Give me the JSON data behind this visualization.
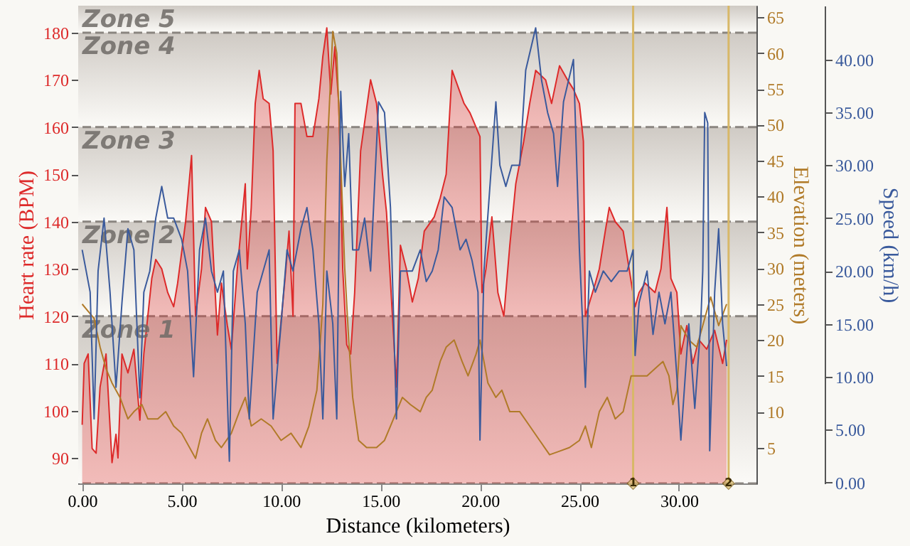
{
  "chart_data": {
    "type": "line",
    "xlabel": "Distance (kilometers)",
    "ylabel": "Heart rate (BPM)",
    "y2label": "Elevation (meters)",
    "y3label": "Speed (km/h)",
    "xlim": [
      -0.2,
      33.9
    ],
    "ylim": [
      84.6,
      185.7
    ],
    "y2lim": [
      0,
      66.6
    ],
    "y3lim": [
      -0.1,
      45.1
    ],
    "xticks": [
      {
        "value": 0,
        "label": "0.00"
      },
      {
        "value": 5,
        "label": "5.00"
      },
      {
        "value": 10,
        "label": "10.00"
      },
      {
        "value": 15,
        "label": "15.00"
      },
      {
        "value": 20,
        "label": "20.00"
      },
      {
        "value": 25,
        "label": "25.00"
      },
      {
        "value": 30,
        "label": "30.00"
      }
    ],
    "yticks": [
      90,
      100,
      110,
      120,
      130,
      140,
      150,
      160,
      170,
      180
    ],
    "y2ticks": [
      5,
      10,
      15,
      20,
      25,
      30,
      35,
      40,
      45,
      50,
      55,
      60,
      65
    ],
    "y3ticks": [
      {
        "value": 0,
        "label": "0.00"
      },
      {
        "value": 5,
        "label": "5.00"
      },
      {
        "value": 10,
        "label": "10.00"
      },
      {
        "value": 15,
        "label": "15.00"
      },
      {
        "value": 20,
        "label": "20.00"
      },
      {
        "value": 25,
        "label": "25.00"
      },
      {
        "value": 30,
        "label": "30.00"
      },
      {
        "value": 35,
        "label": "35.00"
      },
      {
        "value": 40,
        "label": "40.00"
      }
    ],
    "grid": true,
    "bands": [
      {
        "axis": "y",
        "from": 84.6,
        "to": 120,
        "label": "Zone 1",
        "color": "#cfcac4"
      },
      {
        "axis": "y",
        "from": 120,
        "to": 140,
        "label": "Zone 2",
        "color": "#cfcac4"
      },
      {
        "axis": "y",
        "from": 140,
        "to": 160,
        "label": "Zone 3",
        "color": "#cfcac4"
      },
      {
        "axis": "y",
        "from": 160,
        "to": 180,
        "label": "Zone 4",
        "color": "#cfcac4"
      },
      {
        "axis": "y",
        "from": 180,
        "to": 185.7,
        "label": "Zone 5",
        "color": "#cfcac4"
      }
    ],
    "ref_lines": [
      {
        "axis": "x",
        "value": 27.7,
        "color": "#d8b868"
      },
      {
        "axis": "x",
        "value": 32.5,
        "color": "#d8b868"
      }
    ],
    "annotations": [
      {
        "text": "1",
        "x": 27.7,
        "y": 84.6
      },
      {
        "text": "2",
        "x": 32.5,
        "y": 84.6
      }
    ],
    "series": [
      {
        "type": "area",
        "axis": "y",
        "color": "#dd2a2a",
        "x": [
          0,
          0.1,
          0.3,
          0.5,
          0.7,
          0.9,
          1.2,
          1.5,
          1.7,
          1.8,
          2.0,
          2.3,
          2.6,
          2.9,
          3.1,
          3.5,
          3.7,
          4.0,
          4.3,
          4.6,
          4.8,
          5.2,
          5.5,
          5.7,
          6.0,
          6.2,
          6.5,
          6.8,
          7.0,
          7.3,
          7.5,
          7.8,
          8.2,
          8.3,
          8.5,
          8.7,
          8.9,
          9.1,
          9.4,
          9.6,
          9.8,
          10.2,
          10.4,
          10.6,
          10.7,
          11.0,
          11.3,
          11.6,
          11.9,
          12.1,
          12.3,
          12.5,
          12.7,
          12.9,
          13.1,
          13.3,
          13.5,
          13.7,
          14.0,
          14.5,
          14.8,
          15.1,
          15.3,
          15.6,
          15.8,
          16.0,
          16.3,
          16.6,
          16.9,
          17.2,
          17.7,
          18.0,
          18.3,
          18.6,
          19.2,
          19.5,
          20.0,
          20.1,
          20.3,
          20.6,
          20.9,
          21.2,
          21.5,
          21.8,
          22.2,
          22.5,
          22.8,
          23.3,
          23.6,
          24.0,
          24.4,
          24.7,
          25.0,
          25.2,
          25.3,
          25.8,
          26.0,
          26.3,
          26.5,
          26.8,
          27.2,
          27.5,
          27.8,
          28.0,
          28.3,
          28.8,
          29.1,
          29.4,
          29.6,
          29.9,
          30.1,
          30.4,
          30.7,
          31.0,
          31.4,
          31.8,
          32.2,
          32.4
        ],
        "values": [
          97,
          110,
          112,
          92,
          91,
          105,
          112,
          89,
          95,
          90,
          112,
          108,
          113,
          98,
          112,
          128,
          132,
          130,
          125,
          122,
          127,
          140,
          154,
          120,
          130,
          143,
          140,
          116,
          127,
          118,
          113,
          130,
          148,
          130,
          143,
          165,
          172,
          166,
          165,
          155,
          110,
          128,
          138,
          120,
          165,
          165,
          158,
          158,
          166,
          175,
          181,
          167,
          177,
          165,
          130,
          114,
          112,
          125,
          155,
          170,
          165,
          150,
          142,
          120,
          105,
          135,
          130,
          123,
          128,
          138,
          141,
          145,
          150,
          172,
          165,
          163,
          158,
          125,
          130,
          141,
          125,
          120,
          135,
          148,
          157,
          165,
          172,
          170,
          165,
          173,
          170,
          168,
          165,
          157,
          120,
          127,
          130,
          138,
          143,
          140,
          138,
          130,
          122,
          125,
          127,
          125,
          130,
          143,
          128,
          125,
          112,
          118,
          110,
          115,
          113,
          117,
          110,
          115
        ]
      },
      {
        "axis": "y2",
        "color": "#b07a28",
        "x": [
          0,
          0.3,
          0.6,
          0.9,
          1.2,
          1.5,
          1.9,
          2.3,
          2.6,
          3.0,
          3.3,
          3.8,
          4.2,
          4.6,
          5.0,
          5.7,
          6.0,
          6.3,
          6.7,
          7.0,
          7.5,
          7.9,
          8.2,
          8.5,
          9.0,
          9.5,
          10.0,
          10.5,
          11.0,
          11.4,
          11.8,
          12.1,
          12.3,
          12.6,
          12.8,
          13.0,
          13.2,
          13.4,
          13.6,
          13.9,
          14.3,
          14.8,
          15.2,
          15.5,
          15.8,
          16.1,
          16.5,
          17.0,
          17.3,
          17.6,
          18.0,
          18.3,
          18.7,
          19.1,
          19.4,
          19.8,
          20.0,
          20.4,
          20.8,
          21.1,
          21.5,
          22.0,
          22.5,
          23.0,
          23.5,
          24.0,
          24.5,
          25.0,
          25.3,
          25.6,
          26.0,
          26.4,
          26.8,
          27.2,
          27.6,
          28.0,
          28.4,
          28.8,
          29.2,
          29.5,
          29.7,
          29.9,
          30.1,
          30.5,
          30.9,
          31.2,
          31.6,
          32.0,
          32.4
        ],
        "values": [
          25,
          24,
          23,
          19,
          16,
          14,
          12,
          9,
          10,
          11,
          9,
          9,
          10,
          8,
          7,
          3.5,
          7,
          9,
          6,
          5,
          7,
          10,
          12,
          8,
          9,
          8,
          6,
          7,
          5,
          8,
          13,
          25,
          45,
          63,
          60,
          45,
          30,
          20,
          12,
          6,
          5,
          5,
          6,
          8,
          10,
          12,
          11,
          10,
          12,
          13,
          17,
          19,
          20,
          17,
          15,
          18,
          20,
          14,
          12,
          13,
          10,
          10,
          8,
          6,
          4,
          4.5,
          5,
          6,
          8,
          5,
          10,
          12,
          9,
          10,
          15,
          15,
          15,
          16,
          17,
          15,
          11,
          13,
          22,
          20,
          19,
          22,
          26,
          22,
          25
        ]
      },
      {
        "axis": "y3",
        "color": "#3a5a9c",
        "x": [
          0,
          0.2,
          0.4,
          0.6,
          0.8,
          1.1,
          1.4,
          1.7,
          2.0,
          2.3,
          2.6,
          2.9,
          3.1,
          3.4,
          3.7,
          4.0,
          4.3,
          4.6,
          5.0,
          5.3,
          5.6,
          5.9,
          6.2,
          6.5,
          6.8,
          7.1,
          7.4,
          7.6,
          7.9,
          8.2,
          8.4,
          8.8,
          9.1,
          9.4,
          9.6,
          10.0,
          10.3,
          10.6,
          11.0,
          11.3,
          11.6,
          11.9,
          12.1,
          12.3,
          12.6,
          12.8,
          13.0,
          13.2,
          13.4,
          13.6,
          13.9,
          14.2,
          14.5,
          14.9,
          15.2,
          15.5,
          15.8,
          16.0,
          16.3,
          16.6,
          17.0,
          17.3,
          17.6,
          17.9,
          18.2,
          18.6,
          19.0,
          19.3,
          19.6,
          19.9,
          20.0,
          20.2,
          20.5,
          20.8,
          21.0,
          21.3,
          21.6,
          22.0,
          22.3,
          22.8,
          23.1,
          23.4,
          23.7,
          23.9,
          24.2,
          24.7,
          25.0,
          25.3,
          25.5,
          25.8,
          26.2,
          26.6,
          27.0,
          27.4,
          27.7,
          27.8,
          28.0,
          28.4,
          28.7,
          29.0,
          29.3,
          29.6,
          29.9,
          30.1,
          30.5,
          30.8,
          31.1,
          31.2,
          31.3,
          31.45,
          31.55,
          31.8,
          32.0,
          32.2,
          32.4
        ],
        "values": [
          22,
          20,
          18,
          6,
          20,
          25,
          18,
          9,
          17,
          24,
          22,
          8,
          18,
          20,
          25,
          28,
          25,
          25,
          23,
          20,
          10,
          22,
          25,
          20,
          18,
          20,
          2,
          20,
          22,
          15,
          6,
          18,
          20,
          22,
          6,
          15,
          22,
          20,
          24,
          26,
          22,
          15,
          6,
          20,
          15,
          6,
          37,
          28,
          33,
          22,
          22,
          25,
          20,
          36,
          35,
          26,
          6,
          20,
          20,
          20,
          22,
          19,
          20,
          22,
          27,
          26,
          22,
          23,
          21,
          18,
          4,
          20,
          28,
          36,
          30,
          28,
          30,
          30,
          39,
          43,
          38,
          35,
          33,
          28,
          36,
          40,
          22,
          9,
          20,
          18,
          20,
          19,
          20,
          20,
          22,
          12,
          17,
          20,
          14,
          18,
          15,
          18,
          10,
          4,
          15,
          7,
          15,
          20,
          35,
          34,
          3,
          18,
          24,
          15,
          11
        ]
      }
    ]
  }
}
